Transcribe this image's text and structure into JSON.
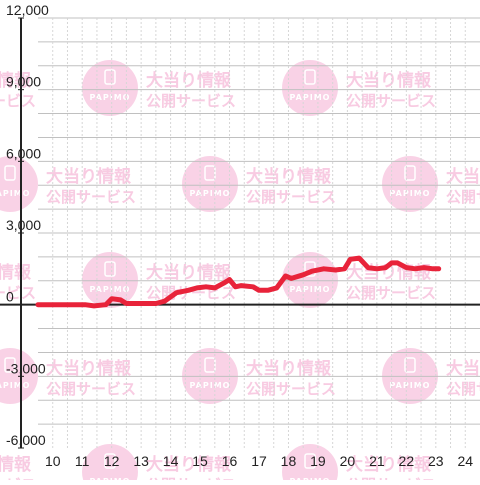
{
  "colors": {
    "line": "#e8233a",
    "axis": "#222222",
    "grid": "#c0c0c0",
    "grid_minor": "#d6d6d6",
    "watermark": "#f7c3dd",
    "tick_label": "#222222"
  },
  "watermark": {
    "logo_text": "PAPIMO",
    "line1": "大当り情報",
    "line2": "公開サービス",
    "icon": "papimo-logo-icon"
  },
  "chart_data": {
    "type": "line",
    "xlim": [
      9.5,
      24.5
    ],
    "ylim": [
      -6000,
      12000
    ],
    "x_ticks": [
      10,
      11,
      12,
      13,
      14,
      15,
      16,
      17,
      18,
      19,
      20,
      21,
      22,
      23,
      24
    ],
    "x_tick_labels": [
      "10",
      "11",
      "12",
      "13",
      "14",
      "15",
      "16",
      "17",
      "18",
      "19",
      "20",
      "21",
      "22",
      "23",
      "24"
    ],
    "y_ticks": [
      12000,
      9000,
      6000,
      3000,
      0,
      -3000,
      -6000
    ],
    "y_tick_labels": [
      "12,000",
      "9,000",
      "6,000",
      "3,000",
      "0",
      "-3,000",
      "-6,000"
    ],
    "grid": true,
    "series": [
      {
        "x": [
          9.5,
          11.1,
          11.4,
          11.8,
          12.0,
          12.3,
          12.5,
          13.0,
          13.5,
          13.8,
          14.2,
          14.6,
          14.9,
          15.2,
          15.5,
          15.8,
          16.0,
          16.2,
          16.4,
          16.8,
          17.0,
          17.3,
          17.6,
          17.9,
          18.1,
          18.5,
          18.8,
          19.2,
          19.6,
          19.9,
          20.1,
          20.4,
          20.7,
          21.0,
          21.3,
          21.5,
          21.7,
          22.0,
          22.3,
          22.6,
          22.9,
          23.1
        ],
        "y": [
          0,
          0,
          -50,
          0,
          250,
          200,
          50,
          50,
          50,
          150,
          500,
          600,
          700,
          750,
          700,
          900,
          1050,
          750,
          800,
          750,
          600,
          600,
          700,
          1200,
          1100,
          1250,
          1400,
          1500,
          1450,
          1500,
          1900,
          1950,
          1550,
          1500,
          1550,
          1750,
          1750,
          1550,
          1500,
          1550,
          1500,
          1500
        ]
      }
    ]
  }
}
